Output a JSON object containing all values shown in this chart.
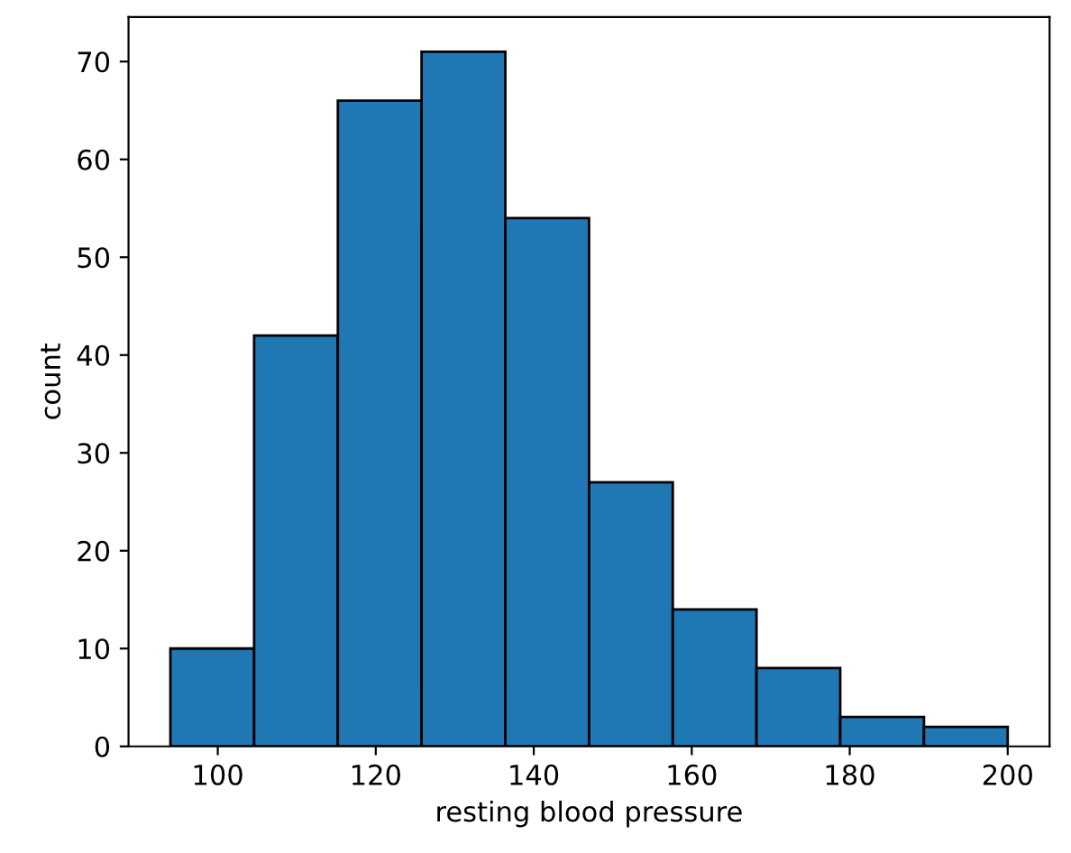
{
  "chart_data": {
    "type": "histogram",
    "xlabel": "resting blood pressure",
    "ylabel": "count",
    "bins": [
      94,
      104.6,
      115.2,
      125.8,
      136.4,
      147,
      157.6,
      168.2,
      178.8,
      189.4,
      200
    ],
    "values": [
      10,
      42,
      66,
      71,
      54,
      27,
      14,
      8,
      3,
      2
    ],
    "color": "#1f77b4",
    "xlim": [
      88.7,
      205.3
    ],
    "ylim": [
      0,
      74.55
    ],
    "xticks": [
      100,
      120,
      140,
      160,
      180,
      200
    ],
    "yticks": [
      0,
      10,
      20,
      30,
      40,
      50,
      60,
      70
    ],
    "grid": false
  }
}
